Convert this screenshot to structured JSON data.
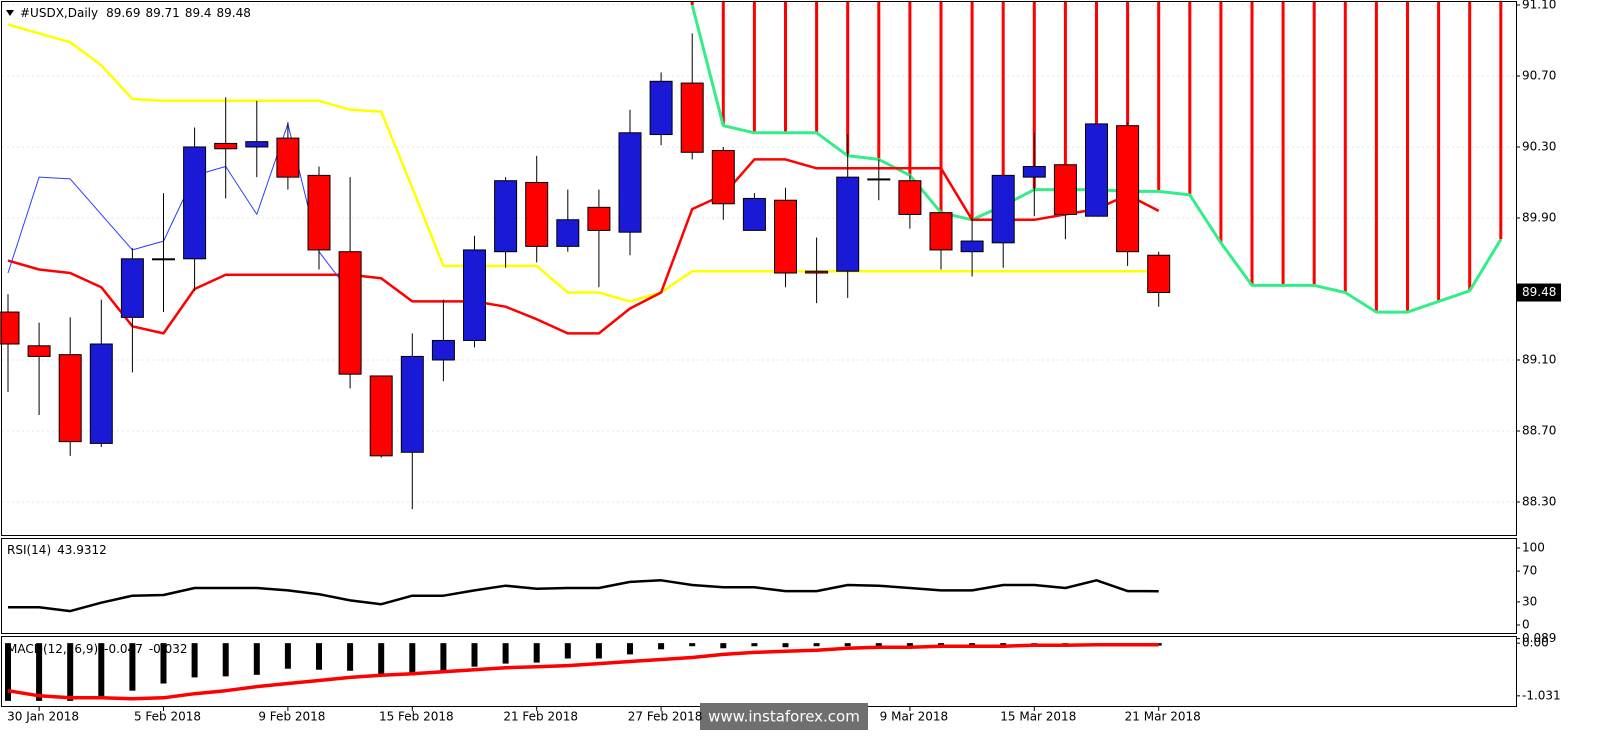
{
  "chart_data": [
    {
      "type": "candlestick",
      "title": "#USDX,Daily",
      "categories": [
        null,
        "30 Jan 2018",
        null,
        null,
        null,
        "5 Feb 2018",
        null,
        null,
        null,
        "9 Feb 2018",
        null,
        null,
        null,
        "15 Feb 2018",
        null,
        null,
        null,
        "21 Feb 2018",
        null,
        null,
        null,
        "27 Feb 2018",
        null,
        null,
        null,
        null,
        null,
        null,
        null,
        "9 Mar 2018",
        null,
        null,
        null,
        "15 Mar 2018",
        null,
        null,
        null,
        "21 Mar 2018",
        null,
        null,
        null,
        null,
        null,
        null,
        null,
        null,
        null,
        null,
        null
      ],
      "open": [
        89.37,
        89.18,
        89.13,
        88.63,
        89.34,
        89.67,
        89.67,
        90.32,
        90.3,
        90.35,
        90.14,
        89.71,
        89.01,
        88.58,
        89.1,
        89.21,
        89.71,
        90.1,
        89.74,
        89.96,
        89.82,
        90.37,
        90.66,
        90.28,
        89.83,
        90.0,
        89.6,
        89.6,
        90.12,
        90.11,
        89.93,
        89.71,
        89.76,
        90.13,
        90.2,
        89.91,
        90.42,
        89.69,
        null,
        null,
        null,
        null,
        null,
        null,
        null,
        null,
        null,
        null,
        null
      ],
      "high": [
        89.47,
        89.31,
        89.34,
        89.44,
        89.73,
        90.04,
        90.41,
        90.58,
        90.56,
        90.44,
        90.19,
        90.13,
        89.01,
        89.25,
        89.44,
        89.8,
        90.13,
        90.25,
        90.06,
        90.06,
        90.51,
        90.72,
        90.94,
        90.3,
        90.04,
        90.07,
        89.79,
        90.37,
        90.23,
        90.14,
        89.93,
        89.9,
        90.14,
        90.38,
        90.2,
        90.43,
        90.44,
        89.71,
        null,
        null,
        null,
        null,
        null,
        null,
        null,
        null,
        null,
        null,
        null
      ],
      "low": [
        88.92,
        88.79,
        88.56,
        88.61,
        89.03,
        89.37,
        89.49,
        90.01,
        90.13,
        90.06,
        89.61,
        88.94,
        88.55,
        88.26,
        88.98,
        89.17,
        89.62,
        89.65,
        89.71,
        89.51,
        89.69,
        90.31,
        90.23,
        89.89,
        89.83,
        89.51,
        89.42,
        89.45,
        90.0,
        89.84,
        89.61,
        89.57,
        89.62,
        89.91,
        89.78,
        89.91,
        89.63,
        89.4,
        null,
        null,
        null,
        null,
        null,
        null,
        null,
        null,
        null,
        null,
        null
      ],
      "close": [
        89.19,
        89.12,
        88.64,
        89.19,
        89.67,
        89.67,
        90.3,
        90.29,
        90.33,
        90.13,
        89.72,
        89.02,
        88.56,
        89.12,
        89.21,
        89.72,
        90.11,
        89.74,
        89.89,
        89.83,
        90.38,
        90.67,
        90.27,
        89.98,
        90.01,
        89.59,
        89.59,
        90.13,
        90.12,
        89.92,
        89.72,
        89.77,
        90.14,
        90.19,
        89.92,
        90.43,
        89.71,
        89.48,
        null,
        null,
        null,
        null,
        null,
        null,
        null,
        null,
        null,
        null,
        null
      ],
      "up_color": "#1a1ad6",
      "down_color": "#ff0000",
      "doji_color": "#000000",
      "series": [
        {
          "color": "#ffff00",
          "values": [
            90.99,
            90.94,
            90.89,
            90.76,
            90.57,
            90.56,
            90.56,
            90.56,
            90.56,
            90.56,
            90.56,
            90.51,
            90.5,
            90.07,
            89.63,
            89.63,
            89.63,
            89.63,
            89.48,
            89.48,
            89.43,
            89.48,
            89.6,
            89.6,
            89.6,
            89.6,
            89.6,
            89.6,
            89.6,
            89.6,
            89.6,
            89.6,
            89.6,
            89.6,
            89.6,
            89.6,
            89.6,
            89.6,
            null,
            null,
            null,
            null,
            null,
            null,
            null,
            null,
            null,
            null,
            null
          ]
        },
        {
          "color": "#ff0000",
          "values": [
            89.66,
            89.61,
            89.59,
            89.51,
            89.29,
            89.25,
            89.5,
            89.58,
            89.58,
            89.58,
            89.58,
            89.58,
            89.56,
            89.43,
            89.43,
            89.43,
            89.4,
            89.33,
            89.25,
            89.25,
            89.39,
            89.48,
            89.95,
            90.03,
            90.23,
            90.23,
            90.18,
            90.18,
            90.18,
            90.18,
            90.18,
            89.89,
            89.89,
            89.89,
            89.92,
            89.95,
            90.03,
            89.94,
            null,
            null,
            null,
            null,
            null,
            null,
            null,
            null,
            null,
            null,
            null
          ]
        },
        {
          "color": "#2a3cff",
          "values": [
            89.59,
            90.13,
            90.12,
            89.92,
            89.72,
            89.77,
            90.14,
            90.19,
            89.92,
            90.43,
            89.71,
            89.48,
            null,
            null,
            null,
            null,
            null,
            null,
            null,
            null,
            null,
            null,
            null,
            null,
            null,
            null,
            null,
            null,
            null,
            null,
            null,
            null,
            null,
            null,
            null,
            null,
            null,
            null,
            null,
            null,
            null,
            null,
            null,
            null,
            null,
            null,
            null,
            null,
            null
          ]
        }
      ],
      "cloud": {
        "color": "#33ee88",
        "hatch_color": "#ff0000",
        "values": [
          null,
          null,
          null,
          null,
          null,
          null,
          null,
          null,
          null,
          null,
          null,
          null,
          null,
          null,
          null,
          null,
          null,
          null,
          null,
          null,
          null,
          null,
          91.1,
          90.42,
          90.38,
          90.38,
          90.38,
          90.25,
          90.23,
          90.14,
          89.93,
          89.89,
          89.97,
          90.06,
          90.06,
          90.06,
          90.05,
          90.05,
          90.03,
          89.76,
          89.52,
          89.52,
          89.52,
          89.48,
          89.37,
          89.37,
          89.43,
          89.49,
          89.78
        ]
      },
      "ylim": [
        88.114,
        91.128
      ],
      "yticks": [
        {
          "value": 91.1,
          "label": "91.10"
        },
        {
          "value": 90.7,
          "label": "90.70"
        },
        {
          "value": 90.3,
          "label": "90.30"
        },
        {
          "value": 89.9,
          "label": "89.90"
        },
        {
          "value": 89.1,
          "label": "89.10"
        },
        {
          "value": 88.7,
          "label": "88.70"
        },
        {
          "value": 88.3,
          "label": "88.30"
        }
      ],
      "grid": true
    },
    {
      "type": "line",
      "title": "RSI(14)",
      "color": "#000000",
      "values": [
        23,
        23,
        18,
        29,
        38,
        39,
        48,
        48,
        48,
        45,
        40,
        32,
        27,
        38,
        38,
        45,
        51,
        47,
        48,
        48,
        56,
        58,
        52,
        49,
        49,
        44,
        44,
        52,
        51,
        48,
        45,
        45,
        52,
        52,
        48,
        58,
        44,
        43.9312
      ],
      "ylim": [
        -10.4,
        113
      ],
      "yticks": [
        0,
        30,
        70,
        100
      ]
    },
    {
      "type": "macd",
      "title": "MACD(12,26,9)",
      "color": "#000000",
      "signal_color": "#ff0000",
      "values": [
        -1.13,
        -1.13,
        -1.13,
        -1.07,
        -0.93,
        -0.79,
        -0.67,
        -0.65,
        -0.62,
        -0.5,
        -0.52,
        -0.54,
        -0.63,
        -0.63,
        -0.54,
        -0.46,
        -0.4,
        -0.38,
        -0.3,
        -0.3,
        -0.22,
        -0.12,
        -0.06,
        -0.1,
        -0.06,
        -0.08,
        -0.06,
        -0.06,
        -0.05,
        -0.05,
        -0.04,
        -0.04,
        -0.04,
        -0.03,
        -0.04,
        -0.02,
        -0.03,
        -0.047
      ],
      "signal": [
        -0.93,
        -1.03,
        -1.07,
        -1.07,
        -1.09,
        -1.07,
        -0.99,
        -0.93,
        -0.85,
        -0.79,
        -0.73,
        -0.67,
        -0.63,
        -0.6,
        -0.56,
        -0.52,
        -0.48,
        -0.46,
        -0.44,
        -0.4,
        -0.36,
        -0.32,
        -0.28,
        -0.22,
        -0.18,
        -0.16,
        -0.14,
        -0.1,
        -0.08,
        -0.08,
        -0.06,
        -0.06,
        -0.06,
        -0.04,
        -0.04,
        -0.03,
        -0.03,
        -0.032
      ],
      "ylim": [
        -1.23,
        0.14
      ],
      "yticks": [
        {
          "value": 0,
          "label": "0.00"
        },
        0.089,
        -1.031
      ]
    }
  ],
  "watermark": "www.instaforex.com"
}
